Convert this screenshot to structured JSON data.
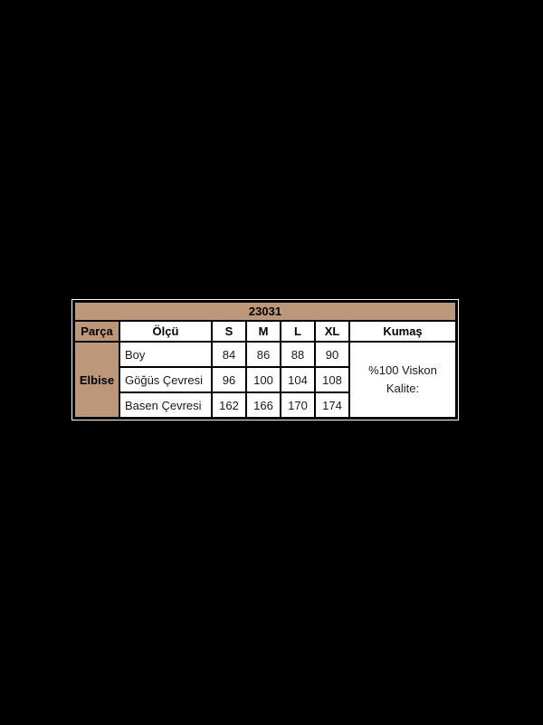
{
  "page": {
    "background_color": "#000000",
    "table_outline_color": "#ffffff",
    "table_border_color": "#000000",
    "accent_color": "#BD9779"
  },
  "size_chart": {
    "product_code": "23031",
    "columns": {
      "piece": "Parça",
      "measure": "Ölçü",
      "sizes": [
        "S",
        "M",
        "L",
        "XL"
      ],
      "fabric": "Kumaş"
    },
    "piece_name": "Elbise",
    "measurements": [
      {
        "label": "Boy",
        "values": [
          "84",
          "86",
          "88",
          "90"
        ]
      },
      {
        "label": "Göğüs Çevresi",
        "values": [
          "96",
          "100",
          "104",
          "108"
        ]
      },
      {
        "label": "Basen Çevresi",
        "values": [
          "162",
          "166",
          "170",
          "174"
        ]
      }
    ],
    "fabric_info": {
      "line1": "%100 Viskon",
      "line2": "Kalite:"
    }
  }
}
